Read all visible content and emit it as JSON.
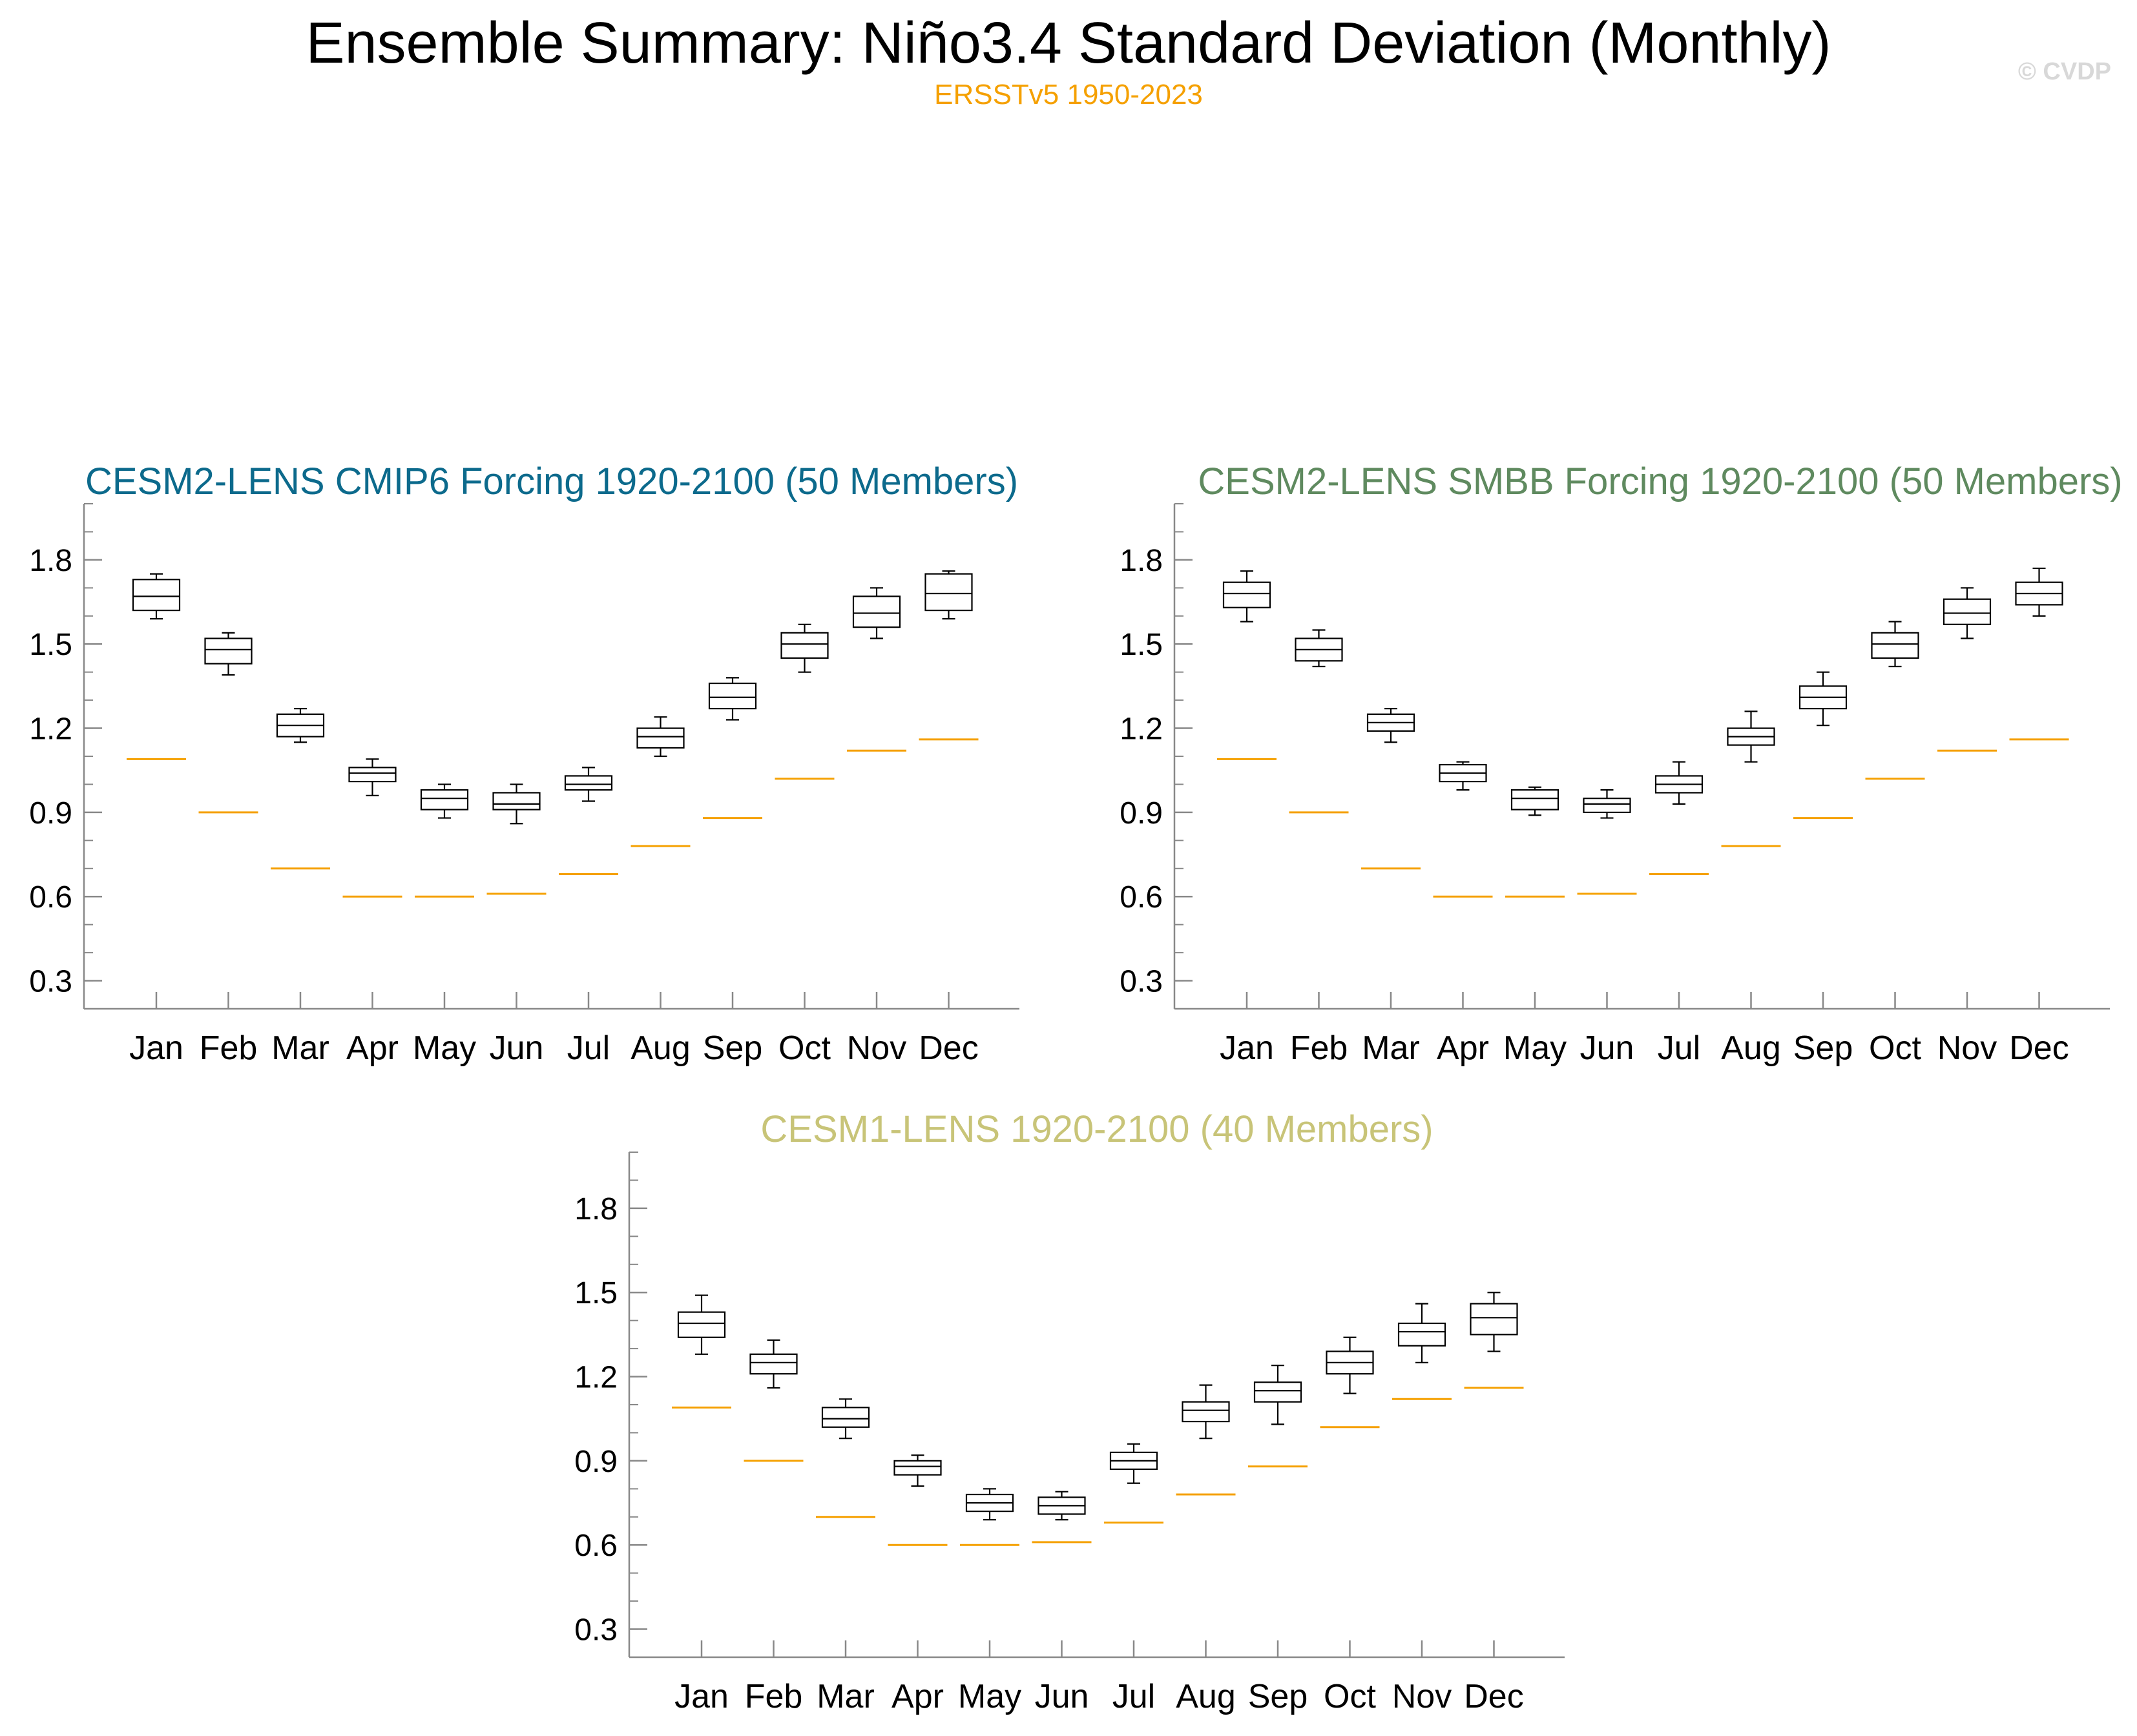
{
  "header": {
    "title": "Ensemble Summary: Niño3.4 Standard Deviation (Monthly)",
    "subtitle": "ERSSTv5 1950-2023",
    "copyright": "© CVDP"
  },
  "colors": {
    "observation": "#f5a000",
    "panel1_title": "#0c6a8c",
    "panel2_title": "#5f8a5f",
    "panel3_title": "#c8c478"
  },
  "chart_data": [
    {
      "type": "boxplot",
      "title": "CESM2-LENS CMIP6 Forcing 1920-2100 (50 Members)",
      "categories": [
        "Jan",
        "Feb",
        "Mar",
        "Apr",
        "May",
        "Jun",
        "Jul",
        "Aug",
        "Sep",
        "Oct",
        "Nov",
        "Dec"
      ],
      "yticks": [
        "0.3",
        "0.6",
        "0.9",
        "1.2",
        "1.5",
        "1.8"
      ],
      "ylim": [
        0.2,
        2.0
      ],
      "boxes": [
        {
          "min": 1.59,
          "q1": 1.62,
          "median": 1.67,
          "q3": 1.73,
          "max": 1.75
        },
        {
          "min": 1.39,
          "q1": 1.43,
          "median": 1.48,
          "q3": 1.52,
          "max": 1.54
        },
        {
          "min": 1.15,
          "q1": 1.17,
          "median": 1.21,
          "q3": 1.25,
          "max": 1.27
        },
        {
          "min": 0.96,
          "q1": 1.01,
          "median": 1.04,
          "q3": 1.06,
          "max": 1.09
        },
        {
          "min": 0.88,
          "q1": 0.91,
          "median": 0.95,
          "q3": 0.98,
          "max": 1.0
        },
        {
          "min": 0.86,
          "q1": 0.91,
          "median": 0.93,
          "q3": 0.97,
          "max": 1.0
        },
        {
          "min": 0.94,
          "q1": 0.98,
          "median": 1.0,
          "q3": 1.03,
          "max": 1.06
        },
        {
          "min": 1.1,
          "q1": 1.13,
          "median": 1.17,
          "q3": 1.2,
          "max": 1.24
        },
        {
          "min": 1.23,
          "q1": 1.27,
          "median": 1.31,
          "q3": 1.36,
          "max": 1.38
        },
        {
          "min": 1.4,
          "q1": 1.45,
          "median": 1.5,
          "q3": 1.54,
          "max": 1.57
        },
        {
          "min": 1.52,
          "q1": 1.56,
          "median": 1.61,
          "q3": 1.67,
          "max": 1.7
        },
        {
          "min": 1.59,
          "q1": 1.62,
          "median": 1.68,
          "q3": 1.75,
          "max": 1.76
        }
      ],
      "observed": [
        1.09,
        0.9,
        0.7,
        0.6,
        0.6,
        0.61,
        0.68,
        0.78,
        0.88,
        1.02,
        1.12,
        1.16
      ]
    },
    {
      "type": "boxplot",
      "title": "CESM2-LENS SMBB Forcing 1920-2100 (50 Members)",
      "categories": [
        "Jan",
        "Feb",
        "Mar",
        "Apr",
        "May",
        "Jun",
        "Jul",
        "Aug",
        "Sep",
        "Oct",
        "Nov",
        "Dec"
      ],
      "yticks": [
        "0.3",
        "0.6",
        "0.9",
        "1.2",
        "1.5",
        "1.8"
      ],
      "ylim": [
        0.2,
        2.0
      ],
      "boxes": [
        {
          "min": 1.58,
          "q1": 1.63,
          "median": 1.68,
          "q3": 1.72,
          "max": 1.76
        },
        {
          "min": 1.42,
          "q1": 1.44,
          "median": 1.48,
          "q3": 1.52,
          "max": 1.55
        },
        {
          "min": 1.15,
          "q1": 1.19,
          "median": 1.22,
          "q3": 1.25,
          "max": 1.27
        },
        {
          "min": 0.98,
          "q1": 1.01,
          "median": 1.04,
          "q3": 1.07,
          "max": 1.08
        },
        {
          "min": 0.89,
          "q1": 0.91,
          "median": 0.95,
          "q3": 0.98,
          "max": 0.99
        },
        {
          "min": 0.88,
          "q1": 0.9,
          "median": 0.93,
          "q3": 0.95,
          "max": 0.98
        },
        {
          "min": 0.93,
          "q1": 0.97,
          "median": 1.0,
          "q3": 1.03,
          "max": 1.08
        },
        {
          "min": 1.08,
          "q1": 1.14,
          "median": 1.17,
          "q3": 1.2,
          "max": 1.26
        },
        {
          "min": 1.21,
          "q1": 1.27,
          "median": 1.31,
          "q3": 1.35,
          "max": 1.4
        },
        {
          "min": 1.42,
          "q1": 1.45,
          "median": 1.5,
          "q3": 1.54,
          "max": 1.58
        },
        {
          "min": 1.52,
          "q1": 1.57,
          "median": 1.61,
          "q3": 1.66,
          "max": 1.7
        },
        {
          "min": 1.6,
          "q1": 1.64,
          "median": 1.68,
          "q3": 1.72,
          "max": 1.77
        }
      ],
      "observed": [
        1.09,
        0.9,
        0.7,
        0.6,
        0.6,
        0.61,
        0.68,
        0.78,
        0.88,
        1.02,
        1.12,
        1.16
      ]
    },
    {
      "type": "boxplot",
      "title": "CESM1-LENS 1920-2100 (40 Members)",
      "categories": [
        "Jan",
        "Feb",
        "Mar",
        "Apr",
        "May",
        "Jun",
        "Jul",
        "Aug",
        "Sep",
        "Oct",
        "Nov",
        "Dec"
      ],
      "yticks": [
        "0.3",
        "0.6",
        "0.9",
        "1.2",
        "1.5",
        "1.8"
      ],
      "ylim": [
        0.2,
        2.0
      ],
      "boxes": [
        {
          "min": 1.28,
          "q1": 1.34,
          "median": 1.39,
          "q3": 1.43,
          "max": 1.49
        },
        {
          "min": 1.16,
          "q1": 1.21,
          "median": 1.25,
          "q3": 1.28,
          "max": 1.33
        },
        {
          "min": 0.98,
          "q1": 1.02,
          "median": 1.05,
          "q3": 1.09,
          "max": 1.12
        },
        {
          "min": 0.81,
          "q1": 0.85,
          "median": 0.88,
          "q3": 0.9,
          "max": 0.92
        },
        {
          "min": 0.69,
          "q1": 0.72,
          "median": 0.75,
          "q3": 0.78,
          "max": 0.8
        },
        {
          "min": 0.69,
          "q1": 0.71,
          "median": 0.74,
          "q3": 0.77,
          "max": 0.79
        },
        {
          "min": 0.82,
          "q1": 0.87,
          "median": 0.9,
          "q3": 0.93,
          "max": 0.96
        },
        {
          "min": 0.98,
          "q1": 1.04,
          "median": 1.08,
          "q3": 1.11,
          "max": 1.17
        },
        {
          "min": 1.03,
          "q1": 1.11,
          "median": 1.15,
          "q3": 1.18,
          "max": 1.24
        },
        {
          "min": 1.14,
          "q1": 1.21,
          "median": 1.25,
          "q3": 1.29,
          "max": 1.34
        },
        {
          "min": 1.25,
          "q1": 1.31,
          "median": 1.36,
          "q3": 1.39,
          "max": 1.46
        },
        {
          "min": 1.29,
          "q1": 1.35,
          "median": 1.41,
          "q3": 1.46,
          "max": 1.5
        }
      ],
      "observed": [
        1.09,
        0.9,
        0.7,
        0.6,
        0.6,
        0.61,
        0.68,
        0.78,
        0.88,
        1.02,
        1.12,
        1.16
      ]
    }
  ]
}
